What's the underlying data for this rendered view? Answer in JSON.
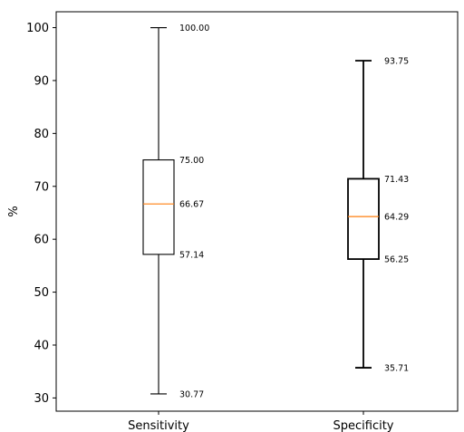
{
  "chart_data": {
    "type": "boxplot",
    "title": "",
    "xlabel": "",
    "ylabel": "%",
    "ylim": [
      27.5,
      103
    ],
    "yticks": [
      30,
      40,
      50,
      60,
      70,
      80,
      90,
      100
    ],
    "grid": false,
    "categories": [
      "Sensitivity",
      "Specificity"
    ],
    "boxes": [
      {
        "category": "Sensitivity",
        "min": 30.77,
        "q1": 57.14,
        "median": 66.67,
        "q3": 75.0,
        "max": 100.0,
        "labels": {
          "min": "30.77",
          "q1": "57.14",
          "median": "66.67",
          "q3": "75.00",
          "max": "100.00"
        }
      },
      {
        "category": "Specificity",
        "min": 35.71,
        "q1": 56.25,
        "median": 64.29,
        "q3": 71.43,
        "max": 93.75,
        "labels": {
          "min": "35.71",
          "q1": "56.25",
          "median": "64.29",
          "q3": "71.43",
          "max": "93.75"
        }
      }
    ],
    "colors": {
      "box": "#000000",
      "median": "#ff7f0e",
      "whisker": "#000000"
    }
  }
}
